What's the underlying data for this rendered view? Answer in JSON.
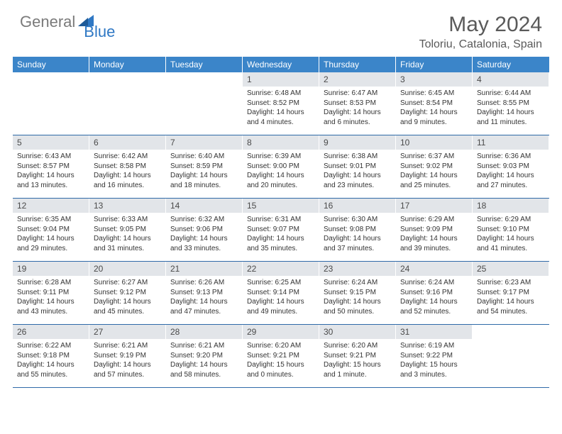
{
  "brand": {
    "part1": "General",
    "part2": "Blue"
  },
  "title": "May 2024",
  "location": "Toloriu, Catalonia, Spain",
  "colors": {
    "header_bg": "#3b85c9",
    "daynum_bg": "#e2e5e9",
    "brand_gray": "#7a7a7a",
    "brand_blue": "#2f78c4",
    "title_gray": "#5a5a5a",
    "row_border": "#2f6aa8"
  },
  "weekdays": [
    "Sunday",
    "Monday",
    "Tuesday",
    "Wednesday",
    "Thursday",
    "Friday",
    "Saturday"
  ],
  "weeks": [
    [
      {
        "n": "",
        "sr": "",
        "ss": "",
        "dl": ""
      },
      {
        "n": "",
        "sr": "",
        "ss": "",
        "dl": ""
      },
      {
        "n": "",
        "sr": "",
        "ss": "",
        "dl": ""
      },
      {
        "n": "1",
        "sr": "Sunrise: 6:48 AM",
        "ss": "Sunset: 8:52 PM",
        "dl": "Daylight: 14 hours and 4 minutes."
      },
      {
        "n": "2",
        "sr": "Sunrise: 6:47 AM",
        "ss": "Sunset: 8:53 PM",
        "dl": "Daylight: 14 hours and 6 minutes."
      },
      {
        "n": "3",
        "sr": "Sunrise: 6:45 AM",
        "ss": "Sunset: 8:54 PM",
        "dl": "Daylight: 14 hours and 9 minutes."
      },
      {
        "n": "4",
        "sr": "Sunrise: 6:44 AM",
        "ss": "Sunset: 8:55 PM",
        "dl": "Daylight: 14 hours and 11 minutes."
      }
    ],
    [
      {
        "n": "5",
        "sr": "Sunrise: 6:43 AM",
        "ss": "Sunset: 8:57 PM",
        "dl": "Daylight: 14 hours and 13 minutes."
      },
      {
        "n": "6",
        "sr": "Sunrise: 6:42 AM",
        "ss": "Sunset: 8:58 PM",
        "dl": "Daylight: 14 hours and 16 minutes."
      },
      {
        "n": "7",
        "sr": "Sunrise: 6:40 AM",
        "ss": "Sunset: 8:59 PM",
        "dl": "Daylight: 14 hours and 18 minutes."
      },
      {
        "n": "8",
        "sr": "Sunrise: 6:39 AM",
        "ss": "Sunset: 9:00 PM",
        "dl": "Daylight: 14 hours and 20 minutes."
      },
      {
        "n": "9",
        "sr": "Sunrise: 6:38 AM",
        "ss": "Sunset: 9:01 PM",
        "dl": "Daylight: 14 hours and 23 minutes."
      },
      {
        "n": "10",
        "sr": "Sunrise: 6:37 AM",
        "ss": "Sunset: 9:02 PM",
        "dl": "Daylight: 14 hours and 25 minutes."
      },
      {
        "n": "11",
        "sr": "Sunrise: 6:36 AM",
        "ss": "Sunset: 9:03 PM",
        "dl": "Daylight: 14 hours and 27 minutes."
      }
    ],
    [
      {
        "n": "12",
        "sr": "Sunrise: 6:35 AM",
        "ss": "Sunset: 9:04 PM",
        "dl": "Daylight: 14 hours and 29 minutes."
      },
      {
        "n": "13",
        "sr": "Sunrise: 6:33 AM",
        "ss": "Sunset: 9:05 PM",
        "dl": "Daylight: 14 hours and 31 minutes."
      },
      {
        "n": "14",
        "sr": "Sunrise: 6:32 AM",
        "ss": "Sunset: 9:06 PM",
        "dl": "Daylight: 14 hours and 33 minutes."
      },
      {
        "n": "15",
        "sr": "Sunrise: 6:31 AM",
        "ss": "Sunset: 9:07 PM",
        "dl": "Daylight: 14 hours and 35 minutes."
      },
      {
        "n": "16",
        "sr": "Sunrise: 6:30 AM",
        "ss": "Sunset: 9:08 PM",
        "dl": "Daylight: 14 hours and 37 minutes."
      },
      {
        "n": "17",
        "sr": "Sunrise: 6:29 AM",
        "ss": "Sunset: 9:09 PM",
        "dl": "Daylight: 14 hours and 39 minutes."
      },
      {
        "n": "18",
        "sr": "Sunrise: 6:29 AM",
        "ss": "Sunset: 9:10 PM",
        "dl": "Daylight: 14 hours and 41 minutes."
      }
    ],
    [
      {
        "n": "19",
        "sr": "Sunrise: 6:28 AM",
        "ss": "Sunset: 9:11 PM",
        "dl": "Daylight: 14 hours and 43 minutes."
      },
      {
        "n": "20",
        "sr": "Sunrise: 6:27 AM",
        "ss": "Sunset: 9:12 PM",
        "dl": "Daylight: 14 hours and 45 minutes."
      },
      {
        "n": "21",
        "sr": "Sunrise: 6:26 AM",
        "ss": "Sunset: 9:13 PM",
        "dl": "Daylight: 14 hours and 47 minutes."
      },
      {
        "n": "22",
        "sr": "Sunrise: 6:25 AM",
        "ss": "Sunset: 9:14 PM",
        "dl": "Daylight: 14 hours and 49 minutes."
      },
      {
        "n": "23",
        "sr": "Sunrise: 6:24 AM",
        "ss": "Sunset: 9:15 PM",
        "dl": "Daylight: 14 hours and 50 minutes."
      },
      {
        "n": "24",
        "sr": "Sunrise: 6:24 AM",
        "ss": "Sunset: 9:16 PM",
        "dl": "Daylight: 14 hours and 52 minutes."
      },
      {
        "n": "25",
        "sr": "Sunrise: 6:23 AM",
        "ss": "Sunset: 9:17 PM",
        "dl": "Daylight: 14 hours and 54 minutes."
      }
    ],
    [
      {
        "n": "26",
        "sr": "Sunrise: 6:22 AM",
        "ss": "Sunset: 9:18 PM",
        "dl": "Daylight: 14 hours and 55 minutes."
      },
      {
        "n": "27",
        "sr": "Sunrise: 6:21 AM",
        "ss": "Sunset: 9:19 PM",
        "dl": "Daylight: 14 hours and 57 minutes."
      },
      {
        "n": "28",
        "sr": "Sunrise: 6:21 AM",
        "ss": "Sunset: 9:20 PM",
        "dl": "Daylight: 14 hours and 58 minutes."
      },
      {
        "n": "29",
        "sr": "Sunrise: 6:20 AM",
        "ss": "Sunset: 9:21 PM",
        "dl": "Daylight: 15 hours and 0 minutes."
      },
      {
        "n": "30",
        "sr": "Sunrise: 6:20 AM",
        "ss": "Sunset: 9:21 PM",
        "dl": "Daylight: 15 hours and 1 minute."
      },
      {
        "n": "31",
        "sr": "Sunrise: 6:19 AM",
        "ss": "Sunset: 9:22 PM",
        "dl": "Daylight: 15 hours and 3 minutes."
      },
      {
        "n": "",
        "sr": "",
        "ss": "",
        "dl": ""
      }
    ]
  ]
}
